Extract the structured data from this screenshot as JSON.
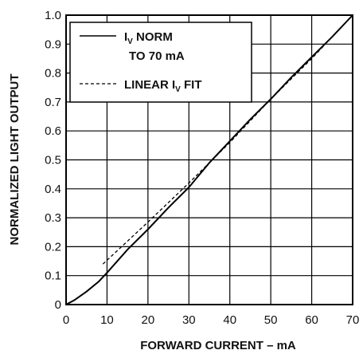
{
  "chart_data": {
    "type": "line",
    "title": "",
    "xlabel": "FORWARD CURRENT – mA",
    "ylabel": "NORMALIZED LIGHT OUTPUT",
    "xlim": [
      0,
      70
    ],
    "ylim": [
      0,
      1.0
    ],
    "grid": true,
    "legend_position": "top-left",
    "x_ticks": [
      "0",
      "10",
      "20",
      "30",
      "40",
      "50",
      "60",
      "70"
    ],
    "y_ticks": [
      "0",
      "0.1",
      "0.2",
      "0.3",
      "0.4",
      "0.5",
      "0.6",
      "0.7",
      "0.8",
      "0.9",
      "1.0"
    ],
    "series": [
      {
        "name": "IV NORM TO 70 mA",
        "legend_main": "I",
        "legend_sub": "V",
        "legend_rest": " NORM",
        "legend_line2": "TO 70 mA",
        "style": "solid",
        "x": [
          0,
          2,
          5,
          8,
          10,
          15,
          20,
          25,
          30,
          35,
          40,
          45,
          50,
          55,
          60,
          65,
          70
        ],
        "y": [
          0,
          0.015,
          0.045,
          0.08,
          0.11,
          0.19,
          0.26,
          0.335,
          0.405,
          0.49,
          0.565,
          0.64,
          0.71,
          0.785,
          0.855,
          0.925,
          1.0
        ]
      },
      {
        "name": "LINEAR IV FIT",
        "legend_main": "LINEAR I",
        "legend_sub": "V",
        "legend_rest": " FIT",
        "style": "dashed",
        "x": [
          9,
          20,
          30,
          40,
          50,
          60,
          70
        ],
        "y": [
          0.14,
          0.285,
          0.42,
          0.56,
          0.71,
          0.85,
          1.0
        ]
      }
    ]
  }
}
